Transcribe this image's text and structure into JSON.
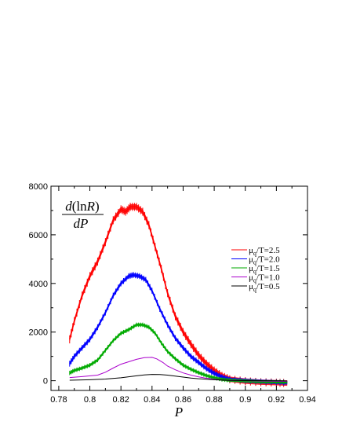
{
  "chart_data": {
    "type": "line",
    "title": "",
    "xlabel": "P",
    "ylabel": {
      "numerator": "d(lnR)",
      "numerator_parts": [
        "d",
        "(ln",
        "R",
        ")"
      ],
      "denominator": "dP",
      "denominator_parts": [
        "d",
        "P"
      ]
    },
    "xlim": [
      0.775,
      0.94
    ],
    "ylim": [
      -400,
      8000
    ],
    "xticks": [
      0.78,
      0.8,
      0.82,
      0.84,
      0.86,
      0.88,
      0.9,
      0.92,
      0.94
    ],
    "xtick_labels": [
      "0.78",
      "0.8",
      "0.82",
      "0.84",
      "0.86",
      "0.88",
      "0.9",
      "0.92",
      "0.94"
    ],
    "yticks": [
      0,
      2000,
      4000,
      6000,
      8000
    ],
    "ytick_labels": [
      "0",
      "2000",
      "4000",
      "6000",
      "8000"
    ],
    "grid": false,
    "legend_position": "right",
    "series": [
      {
        "name": "μq/T=2.5",
        "legend": {
          "mu": "μ",
          "sub": "q",
          "rest": "/T=2.5"
        },
        "color": "#ff0000",
        "band_width": 220,
        "x": [
          0.787,
          0.79,
          0.795,
          0.8,
          0.805,
          0.81,
          0.815,
          0.82,
          0.823,
          0.826,
          0.83,
          0.834,
          0.838,
          0.842,
          0.846,
          0.85,
          0.855,
          0.86,
          0.865,
          0.87,
          0.875,
          0.88,
          0.885,
          0.89,
          0.9,
          0.91,
          0.92,
          0.927
        ],
        "y": [
          1700,
          2450,
          3500,
          4300,
          4900,
          5700,
          6600,
          7050,
          6950,
          7150,
          7150,
          6950,
          6400,
          5500,
          4600,
          3600,
          2650,
          2000,
          1500,
          1050,
          700,
          420,
          200,
          60,
          -20,
          -60,
          -80,
          -100
        ]
      },
      {
        "name": "μq/T=2.0",
        "legend": {
          "mu": "μ",
          "sub": "q",
          "rest": "/T=2.0"
        },
        "color": "#0000ff",
        "band_width": 160,
        "x": [
          0.787,
          0.79,
          0.795,
          0.8,
          0.805,
          0.81,
          0.815,
          0.82,
          0.825,
          0.828,
          0.832,
          0.836,
          0.84,
          0.845,
          0.85,
          0.855,
          0.86,
          0.865,
          0.87,
          0.875,
          0.88,
          0.885,
          0.89,
          0.9,
          0.91,
          0.92,
          0.927
        ],
        "y": [
          700,
          1000,
          1350,
          1700,
          2200,
          2800,
          3500,
          4000,
          4300,
          4350,
          4300,
          4150,
          3700,
          2950,
          2300,
          1750,
          1350,
          1000,
          750,
          500,
          300,
          150,
          50,
          0,
          -40,
          -60,
          -80
        ]
      },
      {
        "name": "μq/T=1.5",
        "legend": {
          "mu": "μ",
          "sub": "q",
          "rest": "/T=1.5"
        },
        "color": "#00aa00",
        "band_width": 120,
        "x": [
          0.787,
          0.79,
          0.795,
          0.8,
          0.805,
          0.81,
          0.815,
          0.82,
          0.825,
          0.83,
          0.834,
          0.838,
          0.842,
          0.846,
          0.85,
          0.855,
          0.86,
          0.865,
          0.87,
          0.875,
          0.88,
          0.885,
          0.89,
          0.9,
          0.91,
          0.92,
          0.927
        ],
        "y": [
          320,
          420,
          520,
          640,
          850,
          1250,
          1650,
          1950,
          2100,
          2300,
          2300,
          2200,
          1950,
          1550,
          1200,
          900,
          640,
          470,
          330,
          210,
          120,
          50,
          20,
          -10,
          -40,
          -50,
          -60
        ]
      },
      {
        "name": "μq/T=1.0",
        "legend": {
          "mu": "μ",
          "sub": "q",
          "rest": "/T=1.0"
        },
        "color": "#aa00cc",
        "band_width": 0,
        "x": [
          0.787,
          0.795,
          0.805,
          0.81,
          0.815,
          0.82,
          0.825,
          0.83,
          0.835,
          0.84,
          0.843,
          0.847,
          0.85,
          0.855,
          0.86,
          0.865,
          0.87,
          0.875,
          0.88,
          0.885,
          0.89,
          0.9,
          0.91,
          0.92,
          0.927
        ],
        "y": [
          130,
          170,
          230,
          350,
          520,
          680,
          780,
          880,
          950,
          960,
          900,
          750,
          600,
          450,
          320,
          230,
          160,
          100,
          60,
          30,
          15,
          0,
          -15,
          -25,
          -30
        ]
      },
      {
        "name": "μq/T=0.5",
        "legend": {
          "mu": "μ",
          "sub": "q",
          "rest": "/T=0.5"
        },
        "color": "#000000",
        "band_width": 0,
        "x": [
          0.787,
          0.8,
          0.81,
          0.82,
          0.83,
          0.835,
          0.84,
          0.845,
          0.85,
          0.855,
          0.86,
          0.865,
          0.87,
          0.88,
          0.89,
          0.9,
          0.91,
          0.92,
          0.927
        ],
        "y": [
          20,
          40,
          70,
          120,
          200,
          240,
          260,
          255,
          230,
          190,
          150,
          110,
          80,
          40,
          15,
          5,
          0,
          -5,
          -10
        ]
      }
    ]
  }
}
